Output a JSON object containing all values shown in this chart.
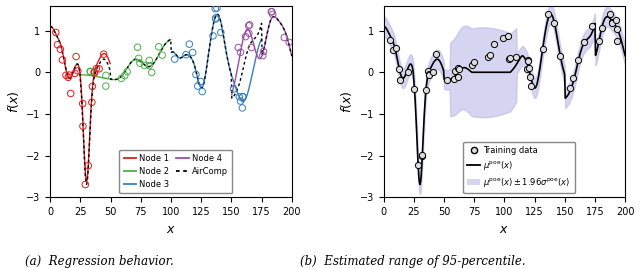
{
  "xlim": [
    0,
    200
  ],
  "ylim": [
    -3,
    1.6
  ],
  "xticks": [
    0,
    25,
    50,
    75,
    100,
    125,
    150,
    175,
    200
  ],
  "xlabel": "$x$",
  "ylabel": "$f(x)$",
  "caption_a": "(a)  Regression behavior.",
  "caption_b": "(b)  Estimated range of 95-percentile.",
  "node_colors": [
    "#e41a1c",
    "#4daf4a",
    "#377eb8",
    "#984ea3"
  ],
  "aircomp_color": "black",
  "fill_color": "#b3b3e6",
  "fill_alpha": 0.55,
  "ylim_left": [
    -3.0,
    1.6
  ],
  "ylim_right": [
    -3.0,
    1.6
  ]
}
